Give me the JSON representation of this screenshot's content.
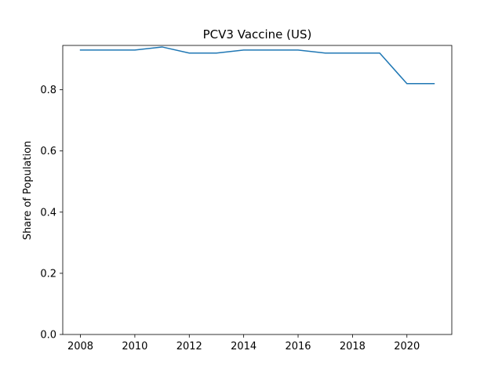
{
  "chart_data": {
    "type": "line",
    "title": "PCV3 Vaccine (US)",
    "xlabel": "",
    "ylabel": "Share of Population",
    "x": [
      2008,
      2009,
      2010,
      2011,
      2012,
      2013,
      2014,
      2015,
      2016,
      2017,
      2018,
      2019,
      2020,
      2021
    ],
    "series": [
      {
        "values": [
          0.93,
          0.93,
          0.93,
          0.94,
          0.92,
          0.92,
          0.93,
          0.93,
          0.93,
          0.92,
          0.92,
          0.92,
          0.82,
          0.82
        ]
      }
    ],
    "xlim": [
      2007.35,
      2021.65
    ],
    "ylim": [
      0.0,
      0.945
    ],
    "xticks": [
      "2008",
      "2010",
      "2012",
      "2014",
      "2016",
      "2018",
      "2020"
    ],
    "yticks": [
      "0.0",
      "0.2",
      "0.4",
      "0.6",
      "0.8"
    ],
    "grid": false,
    "line_color": "#1f77b4"
  }
}
